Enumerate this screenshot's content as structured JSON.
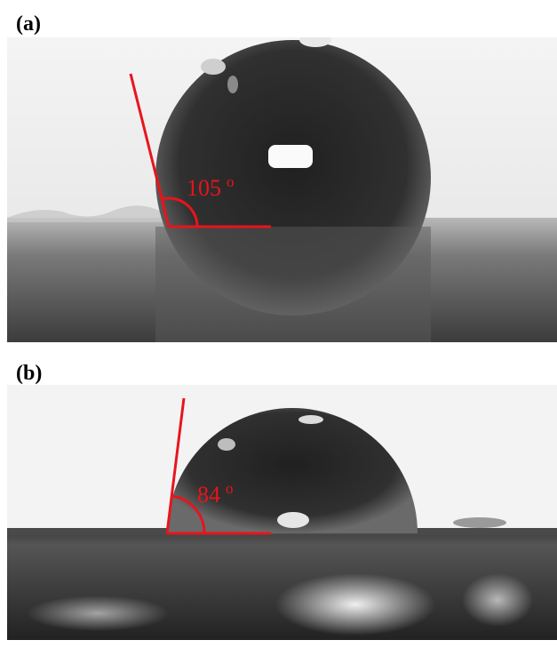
{
  "panels": [
    {
      "label": "(a)",
      "angle": "105",
      "degree": "o"
    },
    {
      "label": "(b)",
      "angle": "84",
      "degree": "o"
    }
  ]
}
